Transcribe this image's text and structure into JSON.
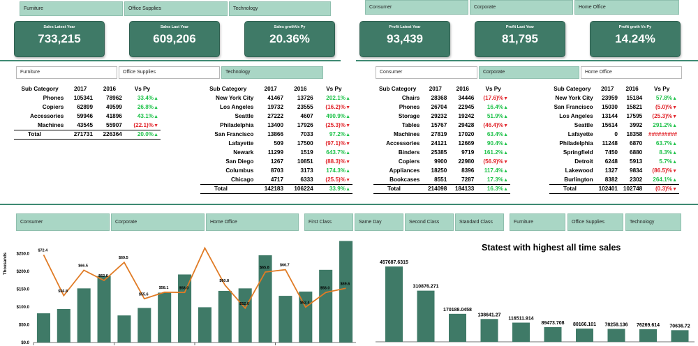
{
  "top_slicers": {
    "products": [
      "Furniture",
      "Office Supplies",
      "Technology"
    ],
    "segments": [
      "Consumer",
      "Corporate",
      "Home Office"
    ]
  },
  "kpis": [
    {
      "label": "Sales Latest Year",
      "value": "733,215"
    },
    {
      "label": "Sales Last Year",
      "value": "609,206"
    },
    {
      "label": "Sales grothVs Py",
      "value": "20.36%"
    },
    {
      "label": "Profit Latest Year",
      "value": "93,439"
    },
    {
      "label": "Profit Last Year",
      "value": "81,795"
    },
    {
      "label": "Profit groth Vs Py",
      "value": "14.24%"
    }
  ],
  "mid_slicers": {
    "products": [
      "Furniture",
      "Office Supplies",
      "Technology"
    ],
    "segments": [
      "Consumer",
      "Corporate",
      "Home Office"
    ]
  },
  "table1": {
    "headers": [
      "Sub Category",
      "2017",
      "2016",
      "Vs Py"
    ],
    "rows": [
      [
        "Phones",
        "105341",
        "78962",
        "33.4%",
        "up"
      ],
      [
        "Copiers",
        "62899",
        "49599",
        "26.8%",
        "up"
      ],
      [
        "Accessories",
        "59946",
        "41896",
        "43.1%",
        "up"
      ],
      [
        "Machines",
        "43545",
        "55907",
        "(22.1)%",
        "dn"
      ]
    ],
    "total": [
      "Total",
      "271731",
      "226364",
      "20.0%",
      "up"
    ]
  },
  "table2": {
    "headers": [
      "Sub Category",
      "2017",
      "2016",
      "Vs Py"
    ],
    "rows": [
      [
        "New York City",
        "41467",
        "13726",
        "202.1%",
        "up"
      ],
      [
        "Los Angeles",
        "19732",
        "23555",
        "(16.2)%",
        "dn"
      ],
      [
        "Seattle",
        "27222",
        "4607",
        "490.9%",
        "up"
      ],
      [
        "Philadelphia",
        "13400",
        "17926",
        "(25.3)%",
        "dn"
      ],
      [
        "San Francisco",
        "13866",
        "7033",
        "97.2%",
        "up"
      ],
      [
        "Lafayette",
        "509",
        "17500",
        "(97.1)%",
        "dn"
      ],
      [
        "Newark",
        "11299",
        "1519",
        "643.7%",
        "up"
      ],
      [
        "San Diego",
        "1267",
        "10851",
        "(88.3)%",
        "dn"
      ],
      [
        "Columbus",
        "8703",
        "3173",
        "174.3%",
        "up"
      ],
      [
        "Chicago",
        "4717",
        "6333",
        "(25.5)%",
        "dn"
      ]
    ],
    "total": [
      "Total",
      "142183",
      "106224",
      "33.9%",
      "up"
    ]
  },
  "table3": {
    "headers": [
      "Sub Category",
      "2017",
      "2016",
      "Vs Py"
    ],
    "rows": [
      [
        "Chairs",
        "28368",
        "34446",
        "(17.6)%",
        "dn"
      ],
      [
        "Phones",
        "26704",
        "22945",
        "16.4%",
        "up"
      ],
      [
        "Storage",
        "29232",
        "19242",
        "51.9%",
        "up"
      ],
      [
        "Tables",
        "15767",
        "29428",
        "(46.4)%",
        "dn"
      ],
      [
        "Machines",
        "27819",
        "17020",
        "63.4%",
        "up"
      ],
      [
        "Accessories",
        "24121",
        "12669",
        "90.4%",
        "up"
      ],
      [
        "Binders",
        "25385",
        "9719",
        "161.2%",
        "up"
      ],
      [
        "Copiers",
        "9900",
        "22980",
        "(56.9)%",
        "dn"
      ],
      [
        "Appliances",
        "18250",
        "8396",
        "117.4%",
        "up"
      ],
      [
        "Bookcases",
        "8551",
        "7287",
        "17.3%",
        "up"
      ]
    ],
    "total": [
      "Total",
      "214098",
      "184133",
      "16.3%",
      "up"
    ]
  },
  "table4": {
    "headers": [
      "Sub Category",
      "2017",
      "2016",
      "Vs Py"
    ],
    "rows": [
      [
        "New York City",
        "23959",
        "15184",
        "57.8%",
        "up"
      ],
      [
        "San Francisco",
        "15030",
        "15821",
        "(5.0)%",
        "dn"
      ],
      [
        "Los Angeles",
        "13144",
        "17595",
        "(25.3)%",
        "dn"
      ],
      [
        "Seattle",
        "15614",
        "3992",
        "291.2%",
        "up"
      ],
      [
        "Lafayette",
        "0",
        "18358",
        "#########",
        "none"
      ],
      [
        "Philadelphia",
        "11248",
        "6870",
        "63.7%",
        "up"
      ],
      [
        "Springfield",
        "7450",
        "6880",
        "8.3%",
        "up"
      ],
      [
        "Detroit",
        "6248",
        "5913",
        "5.7%",
        "up"
      ],
      [
        "Lakewood",
        "1327",
        "9834",
        "(86.5)%",
        "dn"
      ],
      [
        "Burlington",
        "8382",
        "2302",
        "264.1%",
        "up"
      ]
    ],
    "total": [
      "Total",
      "102401",
      "102748",
      "(0.3)%",
      "dn"
    ]
  },
  "bottom_slicers": {
    "segments": [
      "Consumer",
      "Corporate",
      "Home Office"
    ],
    "ship_modes": [
      "First Class",
      "Same Day",
      "Second Class",
      "Standard Class"
    ],
    "products": [
      "Furniture",
      "Office Supplies",
      "Technology"
    ]
  },
  "colors": {
    "accent": "#3f7a67",
    "slicer": "#a9d6c5",
    "line": "#e07b25",
    "positive": "#1fc24a",
    "negative": "#e1262c"
  },
  "chart_data": [
    {
      "type": "bar",
      "ylabel": "Thousands",
      "ylim": [
        0,
        280
      ],
      "ytick_labels": [
        "$0.0",
        "$50.0",
        "$100.0",
        "$150.0",
        "$200.0",
        "$250.0"
      ],
      "yticks": [
        0,
        50,
        100,
        150,
        200,
        250
      ],
      "values": [
        82,
        94,
        152,
        187,
        76,
        97,
        140,
        191,
        99,
        145,
        152,
        245,
        131,
        143,
        204,
        285
      ],
      "line_values": [
        72.4,
        56.8,
        66.5,
        62.6,
        69.5,
        55.6,
        58.1,
        58.0,
        75,
        60.8,
        52.0,
        65.8,
        66.7,
        52.4,
        58.0,
        59.6
      ],
      "line_labels": [
        "$72.4",
        "$56.8",
        "$66.5",
        "$62.6",
        "$69.5",
        "$55.6",
        "$58.1",
        "$58.0",
        "",
        "$60.8",
        "$52.0",
        "$65.8",
        "$66.7",
        "$52.4",
        "$58.0",
        "$59.6"
      ]
    },
    {
      "type": "bar",
      "title": "Statest with highest all time sales",
      "values": [
        457687.6315,
        310876.271,
        170188.0458,
        138641.27,
        116511.914,
        89473.708,
        80166.101,
        78258.136,
        76269.614,
        70636.72
      ],
      "value_labels": [
        "457687.6315",
        "310876.271",
        "170188.0458",
        "138641.27",
        "116511.914",
        "89473.708",
        "80166.101",
        "78258.136",
        "76269.614",
        "70636.72"
      ]
    }
  ]
}
